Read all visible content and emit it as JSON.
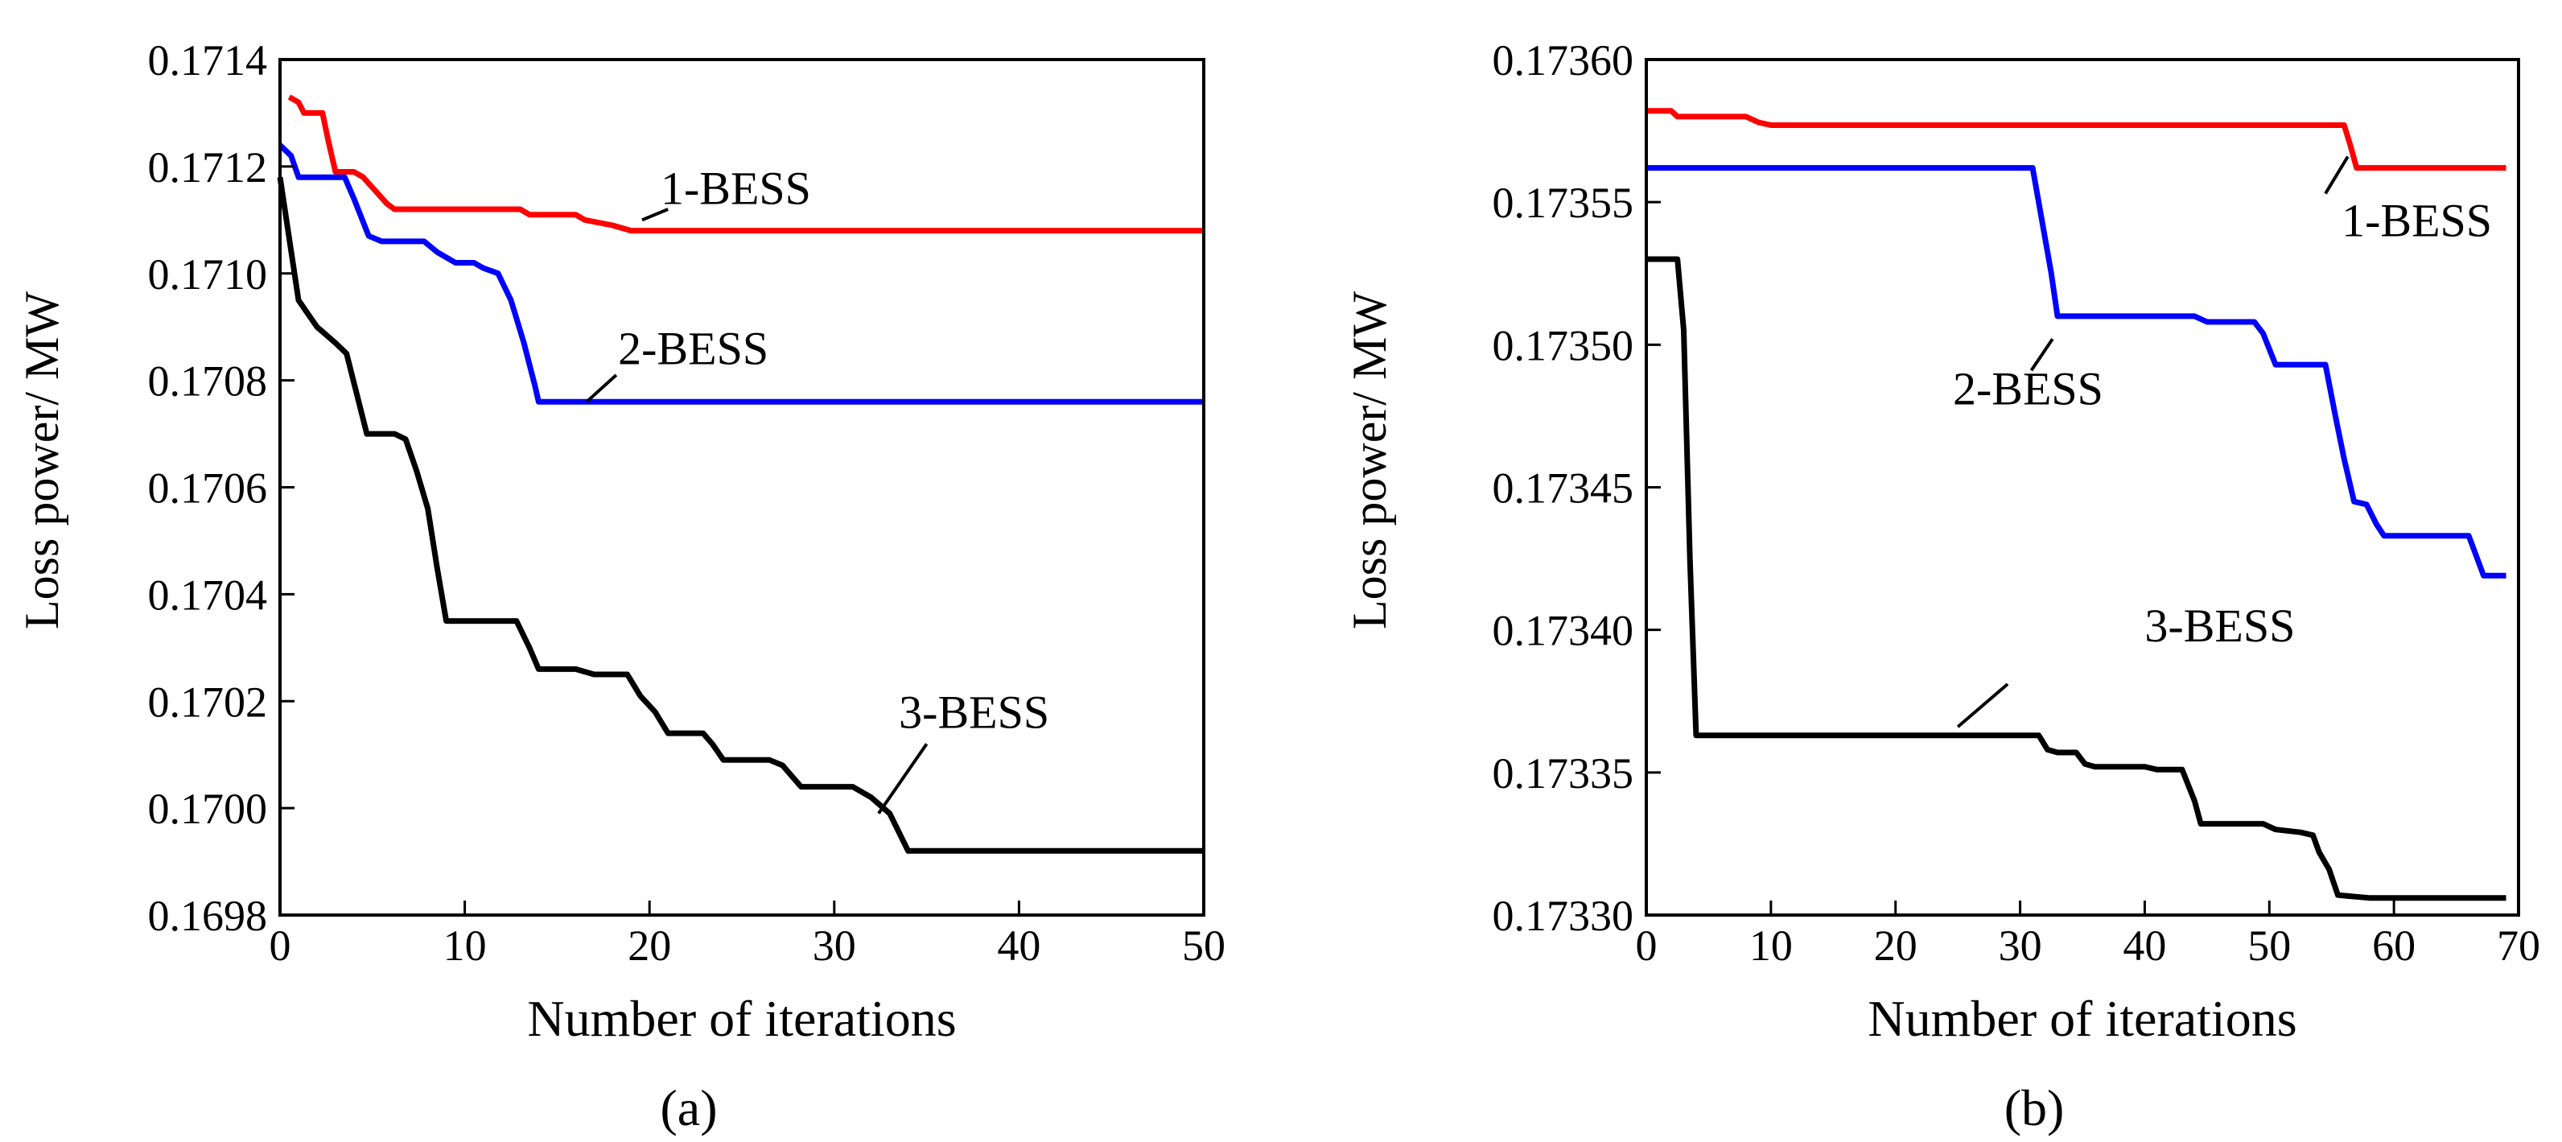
{
  "chart_data": [
    {
      "type": "line",
      "panel_label": "(a)",
      "xlabel": "Number of iterations",
      "ylabel": "Loss power/ MW",
      "xlim": [
        0,
        50
      ],
      "ylim": [
        0.1698,
        0.1714
      ],
      "xticks": [
        0,
        10,
        20,
        30,
        40,
        50
      ],
      "xtick_labels": [
        "0",
        "10",
        "20",
        "30",
        "40",
        "50"
      ],
      "yticks": [
        0.1698,
        0.17,
        0.1702,
        0.1704,
        0.1706,
        0.1708,
        0.171,
        0.1712,
        0.1714
      ],
      "ytick_labels": [
        "0.1698",
        "0.1700",
        "0.1702",
        "0.1704",
        "0.1706",
        "0.1708",
        "0.1710",
        "0.1712",
        "0.1714"
      ],
      "grid": false,
      "series": [
        {
          "name": "1-BESS",
          "color": "#ff0000",
          "label_anchor": [
            20.6,
            0.17113
          ],
          "callout_from": [
            21.0,
            0.17112
          ],
          "callout_to": [
            19.6,
            0.1711
          ],
          "points": [
            [
              0.5,
              0.17133
            ],
            [
              1,
              0.17132
            ],
            [
              1.3,
              0.1713
            ],
            [
              2.3,
              0.1713
            ],
            [
              2.6,
              0.17125
            ],
            [
              3,
              0.17119
            ],
            [
              4,
              0.17119
            ],
            [
              4.5,
              0.17118
            ],
            [
              5.8,
              0.17113
            ],
            [
              6.2,
              0.17112
            ],
            [
              13,
              0.17112
            ],
            [
              13.5,
              0.17111
            ],
            [
              16,
              0.17111
            ],
            [
              16.5,
              0.1711
            ],
            [
              18,
              0.17109
            ],
            [
              19,
              0.17108
            ],
            [
              50,
              0.17108
            ]
          ]
        },
        {
          "name": "2-BESS",
          "color": "#0000ff",
          "label_anchor": [
            18.3,
            0.17083
          ],
          "callout_from": [
            18.2,
            0.17081
          ],
          "callout_to": [
            16.6,
            0.17076
          ],
          "points": [
            [
              0,
              0.17124
            ],
            [
              0.6,
              0.17122
            ],
            [
              1,
              0.17118
            ],
            [
              3.5,
              0.17118
            ],
            [
              4,
              0.17114
            ],
            [
              4.8,
              0.17107
            ],
            [
              5.5,
              0.17106
            ],
            [
              7.8,
              0.17106
            ],
            [
              8.5,
              0.17104
            ],
            [
              9.5,
              0.17102
            ],
            [
              10.5,
              0.17102
            ],
            [
              11,
              0.17101
            ],
            [
              11.8,
              0.171
            ],
            [
              12.5,
              0.17095
            ],
            [
              13.2,
              0.17087
            ],
            [
              13.8,
              0.17079
            ],
            [
              14,
              0.17076
            ],
            [
              50,
              0.17076
            ]
          ]
        },
        {
          "name": "3-BESS",
          "color": "#000000",
          "label_anchor": [
            33.5,
            0.17015
          ],
          "callout_from": [
            35.0,
            0.17012
          ],
          "callout_to": [
            32.4,
            0.16999
          ],
          "points": [
            [
              0,
              0.17118
            ],
            [
              1,
              0.17095
            ],
            [
              2,
              0.1709
            ],
            [
              3,
              0.17087
            ],
            [
              3.6,
              0.17085
            ],
            [
              4.7,
              0.1707
            ],
            [
              6.2,
              0.1707
            ],
            [
              6.8,
              0.17069
            ],
            [
              7.4,
              0.17063
            ],
            [
              8,
              0.17056
            ],
            [
              8.5,
              0.17045
            ],
            [
              9,
              0.17035
            ],
            [
              12.8,
              0.17035
            ],
            [
              13.5,
              0.1703
            ],
            [
              14,
              0.17026
            ],
            [
              16,
              0.17026
            ],
            [
              17,
              0.17025
            ],
            [
              18.8,
              0.17025
            ],
            [
              19.5,
              0.17021
            ],
            [
              20.3,
              0.17018
            ],
            [
              21,
              0.17014
            ],
            [
              22.9,
              0.17014
            ],
            [
              23.4,
              0.17012
            ],
            [
              24,
              0.17009
            ],
            [
              26.5,
              0.17009
            ],
            [
              27.2,
              0.17008
            ],
            [
              28.2,
              0.17004
            ],
            [
              31,
              0.17004
            ],
            [
              32,
              0.17002
            ],
            [
              33,
              0.16999
            ],
            [
              34,
              0.16992
            ],
            [
              50,
              0.16992
            ]
          ]
        }
      ]
    },
    {
      "type": "line",
      "panel_label": "(b)",
      "xlabel": "Number of iterations",
      "ylabel": "Loss power/ MW",
      "xlim": [
        0,
        70
      ],
      "ylim": [
        0.1733,
        0.1736
      ],
      "xticks": [
        0,
        10,
        20,
        30,
        40,
        50,
        60,
        70
      ],
      "xtick_labels": [
        "0",
        "10",
        "20",
        "30",
        "40",
        "50",
        "60",
        "70"
      ],
      "yticks": [
        0.1733,
        0.17335,
        0.1734,
        0.17345,
        0.1735,
        0.17355,
        0.1736
      ],
      "ytick_labels": [
        "0.17330",
        "0.17335",
        "0.17340",
        "0.17345",
        "0.17350",
        "0.17355",
        "0.17360"
      ],
      "grid": false,
      "series": [
        {
          "name": "1-BESS",
          "color": "#ff0000",
          "label_anchor": [
            55.8,
            0.173538
          ],
          "callout_from": [
            54.5,
            0.173553
          ],
          "callout_to": [
            56.3,
            0.173566
          ],
          "points": [
            [
              0,
              0.173582
            ],
            [
              2,
              0.173582
            ],
            [
              2.5,
              0.17358
            ],
            [
              8,
              0.17358
            ],
            [
              9,
              0.173578
            ],
            [
              10,
              0.173577
            ],
            [
              56,
              0.173577
            ],
            [
              56.5,
              0.17357
            ],
            [
              57,
              0.173562
            ],
            [
              69,
              0.173562
            ]
          ]
        },
        {
          "name": "2-BESS",
          "color": "#0000ff",
          "label_anchor": [
            24.6,
            0.173479
          ],
          "callout_from": [
            30.9,
            0.173491
          ],
          "callout_to": [
            32.6,
            0.173502
          ],
          "points": [
            [
              0,
              0.173562
            ],
            [
              31,
              0.173562
            ],
            [
              32.5,
              0.173525
            ],
            [
              33,
              0.17351
            ],
            [
              44,
              0.17351
            ],
            [
              45,
              0.173508
            ],
            [
              48.8,
              0.173508
            ],
            [
              49.5,
              0.173504
            ],
            [
              50.5,
              0.173493
            ],
            [
              54.5,
              0.173493
            ],
            [
              55.3,
              0.173475
            ],
            [
              56,
              0.17346
            ],
            [
              56.8,
              0.173445
            ],
            [
              57.8,
              0.173444
            ],
            [
              58.6,
              0.173437
            ],
            [
              59.2,
              0.173433
            ],
            [
              66,
              0.173433
            ],
            [
              67.2,
              0.173419
            ],
            [
              69,
              0.173419
            ]
          ]
        },
        {
          "name": "3-BESS",
          "color": "#000000",
          "label_anchor": [
            40.0,
            0.173396
          ],
          "callout_from": [
            29.0,
            0.173381
          ],
          "callout_to": [
            25.0,
            0.173366
          ],
          "points": [
            [
              0,
              0.17353
            ],
            [
              2.5,
              0.17353
            ],
            [
              3,
              0.173505
            ],
            [
              3.5,
              0.173425
            ],
            [
              4,
              0.173363
            ],
            [
              31.5,
              0.173363
            ],
            [
              32.2,
              0.173358
            ],
            [
              33,
              0.173357
            ],
            [
              34.5,
              0.173357
            ],
            [
              35.2,
              0.173353
            ],
            [
              36,
              0.173352
            ],
            [
              40,
              0.173352
            ],
            [
              41,
              0.173351
            ],
            [
              43,
              0.173351
            ],
            [
              44,
              0.17334
            ],
            [
              44.5,
              0.173332
            ],
            [
              49.5,
              0.173332
            ],
            [
              50.5,
              0.17333
            ],
            [
              52.5,
              0.173329
            ],
            [
              53.5,
              0.173328
            ],
            [
              54,
              0.173322
            ],
            [
              54.8,
              0.173316
            ],
            [
              55.5,
              0.173307
            ],
            [
              58,
              0.173306
            ],
            [
              69,
              0.173306
            ]
          ]
        }
      ]
    }
  ]
}
